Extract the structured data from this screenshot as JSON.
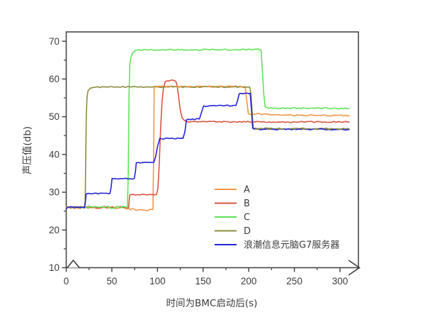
{
  "page": {
    "background": "#ffffff",
    "frame_color": "#3d3d3d",
    "tick_text_color": "#3b3b3b"
  },
  "chart_data": {
    "type": "line",
    "title": "",
    "xlabel": "时间为BMC启动后(s)",
    "ylabel": "声压值(db)",
    "xlim": [
      0,
      320
    ],
    "ylim": [
      10,
      72.5
    ],
    "grid": false,
    "x_ticks_major": [
      0,
      50,
      100,
      150,
      200,
      250,
      300
    ],
    "x_ticks_minor": [
      25,
      75,
      125,
      175,
      225,
      275
    ],
    "y_ticks_major": [
      10,
      20,
      30,
      40,
      50,
      60,
      70
    ],
    "y_ticks_minor": [
      15,
      25,
      35,
      45,
      55,
      65
    ],
    "axis_break_marks": [
      "x-axis-peak-near-origin",
      "x-axis-arrow-right-end"
    ],
    "legend_position": "inside-bottom-right",
    "series": [
      {
        "name": "A",
        "color": "#EE9748",
        "points": [
          [
            0,
            25.9
          ],
          [
            60,
            25.9
          ],
          [
            70,
            25.4
          ],
          [
            95,
            25.4
          ],
          [
            95.8,
            40
          ],
          [
            96.4,
            57.9
          ],
          [
            100,
            58
          ],
          [
            196,
            58
          ],
          [
            197.5,
            55
          ],
          [
            199.5,
            51
          ],
          [
            201,
            50.8
          ],
          [
            240,
            50.4
          ],
          [
            310,
            50.3
          ]
        ]
      },
      {
        "name": "B",
        "color": "#D8543F",
        "points": [
          [
            0,
            26
          ],
          [
            68.5,
            26
          ],
          [
            69.5,
            29.4
          ],
          [
            99,
            29.4
          ],
          [
            100.5,
            31
          ],
          [
            102,
            38
          ],
          [
            103.5,
            47
          ],
          [
            105,
            54
          ],
          [
            106.5,
            57.5
          ],
          [
            108.5,
            59.2
          ],
          [
            111,
            59.6
          ],
          [
            118,
            59.7
          ],
          [
            120,
            59.4
          ],
          [
            121.5,
            58.3
          ],
          [
            123,
            55.5
          ],
          [
            125,
            51.8
          ],
          [
            127,
            49.7
          ],
          [
            129.5,
            48.9
          ],
          [
            135,
            48.7
          ],
          [
            310,
            48.6
          ]
        ]
      },
      {
        "name": "C",
        "color": "#5FE457",
        "points": [
          [
            0,
            26
          ],
          [
            67,
            26
          ],
          [
            68,
            35
          ],
          [
            68.8,
            55
          ],
          [
            69.6,
            63.5
          ],
          [
            71,
            65.8
          ],
          [
            73,
            66.9
          ],
          [
            76,
            67.5
          ],
          [
            85,
            67.7
          ],
          [
            210,
            67.8
          ],
          [
            213.5,
            67.6
          ],
          [
            215,
            62
          ],
          [
            216.5,
            56
          ],
          [
            218,
            52.6
          ],
          [
            220,
            52.3
          ],
          [
            310,
            52.2
          ]
        ]
      },
      {
        "name": "D",
        "color": "#8C8C41",
        "points": [
          [
            0,
            25.9
          ],
          [
            20,
            25.9
          ],
          [
            20.8,
            28
          ],
          [
            21.4,
            40
          ],
          [
            22,
            50
          ],
          [
            22.8,
            55.3
          ],
          [
            24,
            56.9
          ],
          [
            26.5,
            57.5
          ],
          [
            30,
            57.8
          ],
          [
            40,
            57.9
          ],
          [
            201,
            57.9
          ],
          [
            202.5,
            56
          ],
          [
            204,
            50
          ],
          [
            205.2,
            47
          ],
          [
            207,
            46.9
          ],
          [
            310,
            46.8
          ]
        ]
      },
      {
        "name": "浪潮信息元脑G7服务器",
        "color": "#2323D9",
        "points": [
          [
            0,
            25.9
          ],
          [
            20,
            25.9
          ],
          [
            21,
            27.5
          ],
          [
            21.8,
            29.6
          ],
          [
            48,
            29.7
          ],
          [
            49.3,
            31.5
          ],
          [
            50.2,
            33.6
          ],
          [
            74.5,
            33.6
          ],
          [
            75.8,
            35.5
          ],
          [
            76.8,
            37.8
          ],
          [
            96,
            37.9
          ],
          [
            98,
            39.5
          ],
          [
            100,
            42
          ],
          [
            102.5,
            44.2
          ],
          [
            128,
            44.3
          ],
          [
            130,
            46
          ],
          [
            131.8,
            49.2
          ],
          [
            146,
            49.4
          ],
          [
            148,
            51
          ],
          [
            150.5,
            52.8
          ],
          [
            186,
            53
          ],
          [
            188,
            54.5
          ],
          [
            189.5,
            56.1
          ],
          [
            201.5,
            56.2
          ],
          [
            203,
            52
          ],
          [
            204.3,
            47
          ],
          [
            205.5,
            46.7
          ],
          [
            310,
            46.6
          ]
        ]
      }
    ],
    "overlap_dashes": [
      {
        "name": "A-dashes-over-D-at-58db",
        "color": "#EE9748",
        "dash": [
          7,
          8
        ],
        "points": [
          [
            98,
            58
          ],
          [
            195,
            58
          ]
        ]
      },
      {
        "name": "D-dashes-over-blue-at-46.7db",
        "color": "#8C8C41",
        "dash": [
          8,
          9
        ],
        "points": [
          [
            207,
            46.75
          ],
          [
            310,
            46.7
          ]
        ]
      }
    ]
  },
  "legend": {
    "entries": [
      {
        "label": "A",
        "color": "#EE9748"
      },
      {
        "label": "B",
        "color": "#D8543F"
      },
      {
        "label": "C",
        "color": "#5FE457"
      },
      {
        "label": "D",
        "color": "#8C8C41"
      },
      {
        "label": "浪潮信息元脑G7服务器",
        "color": "#2323D9"
      }
    ]
  }
}
